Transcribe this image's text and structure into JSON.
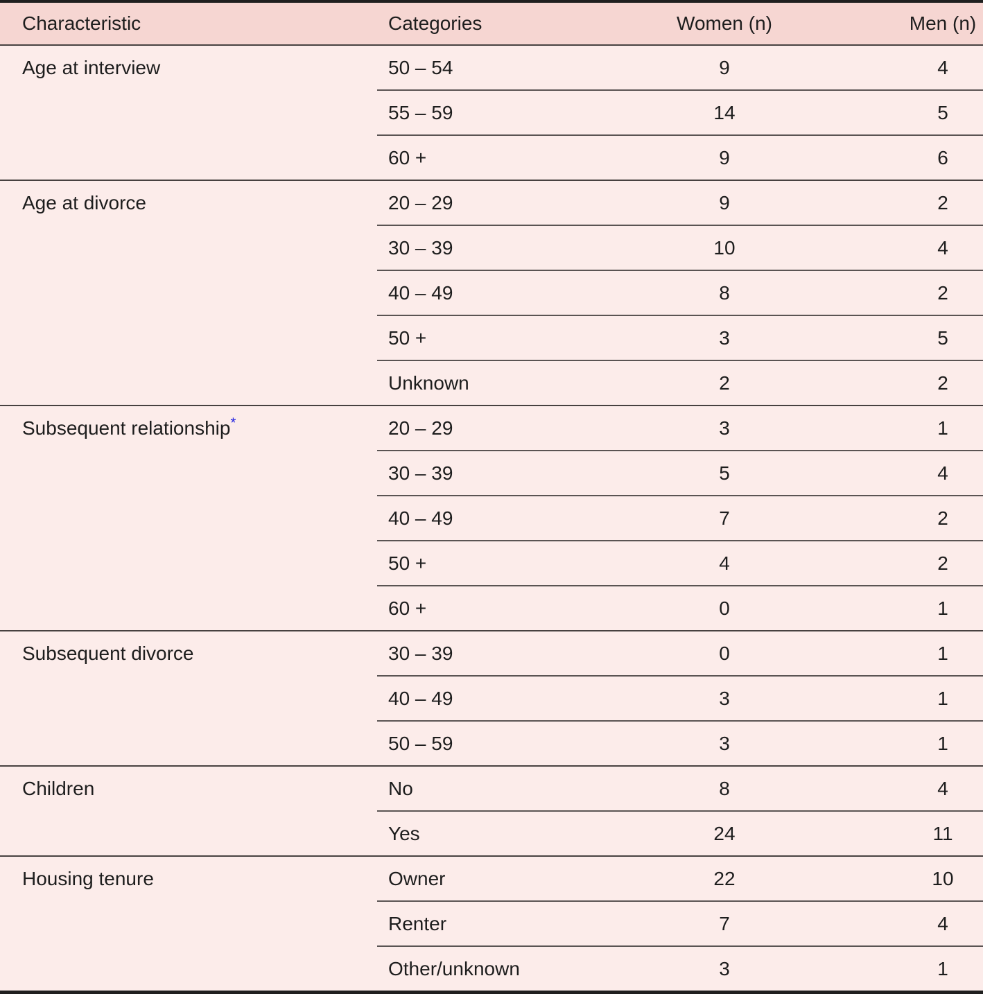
{
  "table": {
    "columns": [
      "Characteristic",
      "Categories",
      "Women (n)",
      "Men (n)"
    ],
    "groups": [
      {
        "characteristic": "Age at interview",
        "footnote": "",
        "rows": [
          {
            "category": "50 – 54",
            "women": "9",
            "men": "4"
          },
          {
            "category": "55 – 59",
            "women": "14",
            "men": "5"
          },
          {
            "category": "60 +",
            "women": "9",
            "men": "6"
          }
        ]
      },
      {
        "characteristic": "Age at divorce",
        "footnote": "",
        "rows": [
          {
            "category": "20 – 29",
            "women": "9",
            "men": "2"
          },
          {
            "category": "30 – 39",
            "women": "10",
            "men": "4"
          },
          {
            "category": "40 – 49",
            "women": "8",
            "men": "2"
          },
          {
            "category": "50 +",
            "women": "3",
            "men": "5"
          },
          {
            "category": "Unknown",
            "women": "2",
            "men": "2"
          }
        ]
      },
      {
        "characteristic": "Subsequent relationship",
        "footnote": "*",
        "rows": [
          {
            "category": "20 – 29",
            "women": "3",
            "men": "1"
          },
          {
            "category": "30 – 39",
            "women": "5",
            "men": "4"
          },
          {
            "category": "40 – 49",
            "women": "7",
            "men": "2"
          },
          {
            "category": "50 +",
            "women": "4",
            "men": "2"
          },
          {
            "category": "60 +",
            "women": "0",
            "men": "1"
          }
        ]
      },
      {
        "characteristic": "Subsequent divorce",
        "footnote": "",
        "rows": [
          {
            "category": "30 – 39",
            "women": "0",
            "men": "1"
          },
          {
            "category": "40 – 49",
            "women": "3",
            "men": "1"
          },
          {
            "category": "50 – 59",
            "women": "3",
            "men": "1"
          }
        ]
      },
      {
        "characteristic": "Children",
        "footnote": "",
        "rows": [
          {
            "category": "No",
            "women": "8",
            "men": "4"
          },
          {
            "category": "Yes",
            "women": "24",
            "men": "11"
          }
        ]
      },
      {
        "characteristic": "Housing tenure",
        "footnote": "",
        "rows": [
          {
            "category": "Owner",
            "women": "22",
            "men": "10"
          },
          {
            "category": "Renter",
            "women": "7",
            "men": "4"
          },
          {
            "category": "Other/unknown",
            "women": "3",
            "men": "1"
          }
        ]
      }
    ],
    "colors": {
      "header_bg": "#f6d6d2",
      "body_bg": "#fcecea",
      "border_dark": "#1f1f1f",
      "rule": "#474140",
      "inner_rule": "#5a5453",
      "footnote": "#2323e0",
      "text": "#1d1d1d"
    }
  },
  "chart_data": {
    "type": "table",
    "title": "",
    "columns": [
      "Characteristic",
      "Categories",
      "Women (n)",
      "Men (n)"
    ],
    "rows": [
      [
        "Age at interview",
        "50 – 54",
        9,
        4
      ],
      [
        "Age at interview",
        "55 – 59",
        14,
        5
      ],
      [
        "Age at interview",
        "60 +",
        9,
        6
      ],
      [
        "Age at divorce",
        "20 – 29",
        9,
        2
      ],
      [
        "Age at divorce",
        "30 – 39",
        10,
        4
      ],
      [
        "Age at divorce",
        "40 – 49",
        8,
        2
      ],
      [
        "Age at divorce",
        "50 +",
        3,
        5
      ],
      [
        "Age at divorce",
        "Unknown",
        2,
        2
      ],
      [
        "Subsequent relationship*",
        "20 – 29",
        3,
        1
      ],
      [
        "Subsequent relationship*",
        "30 – 39",
        5,
        4
      ],
      [
        "Subsequent relationship*",
        "40 – 49",
        7,
        2
      ],
      [
        "Subsequent relationship*",
        "50 +",
        4,
        2
      ],
      [
        "Subsequent relationship*",
        "60 +",
        0,
        1
      ],
      [
        "Subsequent divorce",
        "30 – 39",
        0,
        1
      ],
      [
        "Subsequent divorce",
        "40 – 49",
        3,
        1
      ],
      [
        "Subsequent divorce",
        "50 – 59",
        3,
        1
      ],
      [
        "Children",
        "No",
        8,
        4
      ],
      [
        "Children",
        "Yes",
        24,
        11
      ],
      [
        "Housing tenure",
        "Owner",
        22,
        10
      ],
      [
        "Housing tenure",
        "Renter",
        7,
        4
      ],
      [
        "Housing tenure",
        "Other/unknown",
        3,
        1
      ]
    ]
  }
}
